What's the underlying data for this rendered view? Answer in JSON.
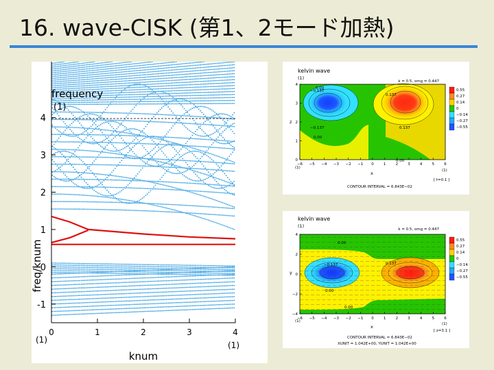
{
  "title": "16. wave-CISK (第1、2モード加熱)",
  "colors": {
    "accent": "#3a86d8",
    "background": "#ececd6",
    "curve_blue": "#2e9be0",
    "curve_red": "#e01010"
  },
  "chart_data": [
    {
      "type": "scatter",
      "title": "",
      "xlabel": "knum",
      "ylabel": "freq/knum",
      "inner_label": "frequency",
      "inner_label_unit": "(1)",
      "x_unit": "(1)",
      "y_unit": "(1)",
      "x_unit_right": "(1)",
      "xlim": [
        0,
        4
      ],
      "ylim": [
        -1.5,
        5.5
      ],
      "xticks": [
        "0",
        "1",
        "2",
        "3",
        "4"
      ],
      "yticks": [
        "-1",
        "0",
        "1",
        "2",
        "3",
        "4"
      ],
      "series": [
        {
          "color": "#2e9be0",
          "style": "dotted dispersion curves"
        },
        {
          "color": "#e01010",
          "points": [
            [
              0,
              1.35
            ],
            [
              0.4,
              1.2
            ],
            [
              0.8,
              1.0
            ],
            [
              1,
              0.98
            ],
            [
              2,
              0.88
            ],
            [
              3,
              0.8
            ],
            [
              4,
              0.75
            ]
          ]
        },
        {
          "color": "#e01010",
          "points": [
            [
              0,
              0.65
            ],
            [
              0.4,
              0.78
            ],
            [
              0.8,
              0.98
            ]
          ]
        },
        {
          "color": "#e01010",
          "points": [
            [
              0,
              0.6
            ],
            [
              4,
              0.6
            ]
          ]
        }
      ]
    },
    {
      "type": "heatmap",
      "title": "kelvin wave",
      "subtitle": "(1)",
      "params": "k = 0.5, omg = 0.447",
      "xlabel": "x",
      "ylabel": "z",
      "x_unit": "(1)",
      "x_unit_right": "(1)",
      "y_unit": "(1)",
      "xticks": [
        "−6",
        "−5",
        "−4",
        "−3",
        "−2",
        "−1",
        "0",
        "1",
        "2",
        "3",
        "4",
        "5",
        "6"
      ],
      "yticks": [
        "0",
        "1",
        "2",
        "3",
        "4"
      ],
      "contour_interval": "CONTOUR INTERVAL = 6.843E−02",
      "slice": "[ t=0.1 ]",
      "contour_labels": [
        "0.00",
        "0.137",
        "0.137",
        "0.00",
        "−0.137",
        "−0.137",
        "0.00"
      ],
      "colorbar": [
        "0.55",
        "0.27",
        "0.14",
        "0",
        "−0.14",
        "−0.27",
        "−0.55"
      ]
    },
    {
      "type": "heatmap",
      "title": "kelvin wave",
      "subtitle": "(1)",
      "params": "k = 0.5, omg = 0.447",
      "xlabel": "x",
      "ylabel": "y",
      "x_unit": "(1)",
      "x_unit_right": "(1)",
      "y_unit": "(1)",
      "xticks": [
        "−6",
        "−5",
        "−4",
        "−3",
        "−2",
        "−1",
        "0",
        "1",
        "2",
        "3",
        "4",
        "5",
        "6"
      ],
      "yticks": [
        "−4",
        "−2",
        "0",
        "2",
        "4"
      ],
      "contour_interval": "CONTOUR INTERVAL = 6.843E−02",
      "slice": "[ z=3.1 ]",
      "units": "XUNIT = 1.042E+00, YUNIT = 1.042E+00",
      "contour_labels": [
        "0.00",
        "0.137",
        "−0.137",
        "0.00",
        "0.00"
      ],
      "colorbar": [
        "0.55",
        "0.27",
        "0.14",
        "0",
        "−0.14",
        "−0.27",
        "−0.55"
      ]
    }
  ]
}
